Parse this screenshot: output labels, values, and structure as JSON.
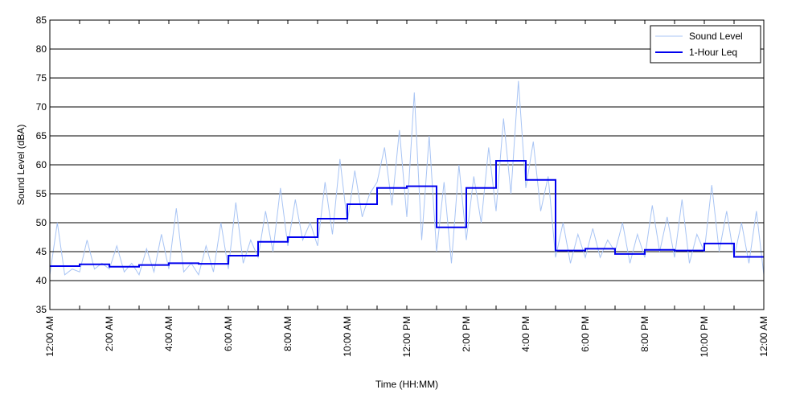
{
  "chart_data": {
    "type": "line",
    "title": "",
    "xlabel": "Time (HH:MM)",
    "ylabel": "Sound Level (dBA)",
    "ylim": [
      35,
      85
    ],
    "y_ticks": [
      35,
      40,
      45,
      50,
      55,
      60,
      65,
      70,
      75,
      80,
      85
    ],
    "x_hour_range": [
      0,
      24
    ],
    "x_tick_labels": [
      "12:00 AM",
      "2:00 AM",
      "4:00 AM",
      "6:00 AM",
      "8:00 AM",
      "10:00 AM",
      "12:00 PM",
      "2:00 PM",
      "4:00 PM",
      "6:00 PM",
      "8:00 PM",
      "10:00 PM",
      "12:00 AM"
    ],
    "grid": "horizontal",
    "legend_position": "top-right",
    "series": [
      {
        "name": "Sound Level",
        "color": "#a8c4f4",
        "style": "thin-line",
        "x_hours": [
          0,
          0.25,
          0.5,
          0.75,
          1,
          1.25,
          1.5,
          1.75,
          2,
          2.25,
          2.5,
          2.75,
          3,
          3.25,
          3.5,
          3.75,
          4,
          4.25,
          4.5,
          4.75,
          5,
          5.25,
          5.5,
          5.75,
          6,
          6.25,
          6.5,
          6.75,
          7,
          7.25,
          7.5,
          7.75,
          8,
          8.25,
          8.5,
          8.75,
          9,
          9.25,
          9.5,
          9.75,
          10,
          10.25,
          10.5,
          10.75,
          11,
          11.25,
          11.5,
          11.75,
          12,
          12.25,
          12.5,
          12.75,
          13,
          13.25,
          13.5,
          13.75,
          14,
          14.25,
          14.5,
          14.75,
          15,
          15.25,
          15.5,
          15.75,
          16,
          16.25,
          16.5,
          16.75,
          17,
          17.25,
          17.5,
          17.75,
          18,
          18.25,
          18.5,
          18.75,
          19,
          19.25,
          19.5,
          19.75,
          20,
          20.25,
          20.5,
          20.75,
          21,
          21.25,
          21.5,
          21.75,
          22,
          22.25,
          22.5,
          22.75,
          23,
          23.25,
          23.5,
          23.75,
          24
        ],
        "values": [
          41,
          50,
          41,
          42,
          41.5,
          47,
          42,
          43,
          42,
          46,
          41.5,
          43,
          41,
          45.5,
          41.5,
          48,
          42,
          52.5,
          41.5,
          43,
          41,
          46,
          41.5,
          50,
          42,
          53.5,
          43,
          47,
          44,
          52,
          45,
          56,
          46,
          54,
          47,
          50,
          46,
          57,
          48,
          61,
          50,
          59,
          51,
          55,
          57,
          63,
          53,
          66,
          51,
          72.5,
          47,
          65,
          45,
          57,
          43,
          60,
          47,
          58,
          50,
          63,
          52,
          68,
          55,
          74.5,
          56,
          64,
          52,
          58,
          44,
          50,
          43,
          48,
          44,
          49,
          44,
          47,
          45,
          50,
          43,
          48,
          44,
          53,
          45,
          51,
          44,
          54,
          43,
          48,
          45,
          56.5,
          45,
          52,
          44,
          50,
          43,
          52,
          41
        ]
      },
      {
        "name": "1-Hour Leq",
        "color": "#0000ee",
        "style": "step",
        "x_hours": [
          0,
          1,
          2,
          3,
          4,
          5,
          6,
          7,
          8,
          9,
          10,
          11,
          12,
          13,
          14,
          15,
          16,
          17,
          18,
          19,
          20,
          21,
          22,
          23
        ],
        "values": [
          42.5,
          42.8,
          42.4,
          42.7,
          43.0,
          42.9,
          44.3,
          46.7,
          47.5,
          50.7,
          53.2,
          56.0,
          56.3,
          49.2,
          56.0,
          60.7,
          57.4,
          45.2,
          45.5,
          44.6,
          45.3,
          45.2,
          46.4,
          44.1
        ]
      }
    ]
  }
}
